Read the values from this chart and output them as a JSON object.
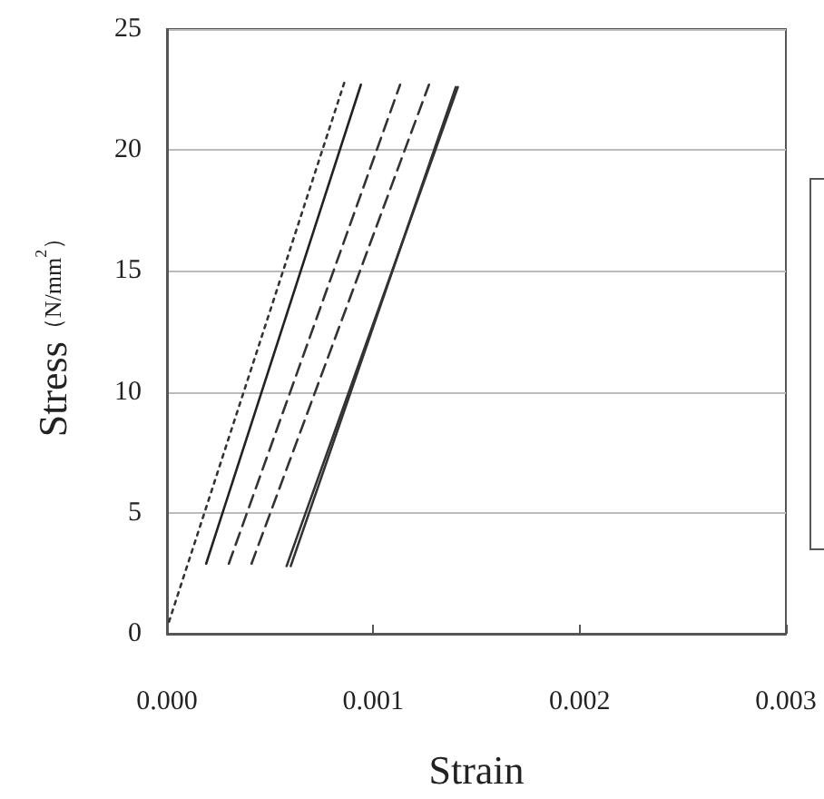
{
  "chart_data": {
    "type": "line",
    "xlabel": "Strain",
    "ylabel": "Stress（N/mm$^{2}$）",
    "xlim": [
      0,
      0.003
    ],
    "xticks": [
      {
        "value": 0,
        "label": "0.000"
      },
      {
        "value": 0.001,
        "label": "0.001"
      },
      {
        "value": 0.002,
        "label": "0.002"
      },
      {
        "value": 0.003,
        "label": "0.003"
      }
    ],
    "ylim": [
      0,
      25
    ],
    "yticks": [
      0,
      5,
      10,
      15,
      20,
      25
    ],
    "grid": "y",
    "series": [
      {
        "color": "#333333",
        "line_style": "dotted",
        "x": [
          1e-05,
          0.00086
        ],
        "values": [
          0.5,
          22.8
        ]
      },
      {
        "color": "#222222",
        "line_style": "solid",
        "x": [
          0.00019,
          0.00094
        ],
        "values": [
          2.9,
          22.7
        ]
      },
      {
        "color": "#333333",
        "line_style": "dashed",
        "x": [
          0.0003,
          0.00113
        ],
        "values": [
          2.9,
          22.7
        ]
      },
      {
        "color": "#333333",
        "line_style": "dashed",
        "x": [
          0.00041,
          0.00127
        ],
        "values": [
          2.9,
          22.7
        ]
      },
      {
        "color": "#333333",
        "line_style": "solid",
        "x": [
          0.00058,
          0.00141
        ],
        "values": [
          2.8,
          22.6
        ]
      },
      {
        "color": "#333333",
        "line_style": "solid",
        "x": [
          0.0006,
          0.0014
        ],
        "values": [
          2.8,
          22.6
        ]
      }
    ]
  }
}
